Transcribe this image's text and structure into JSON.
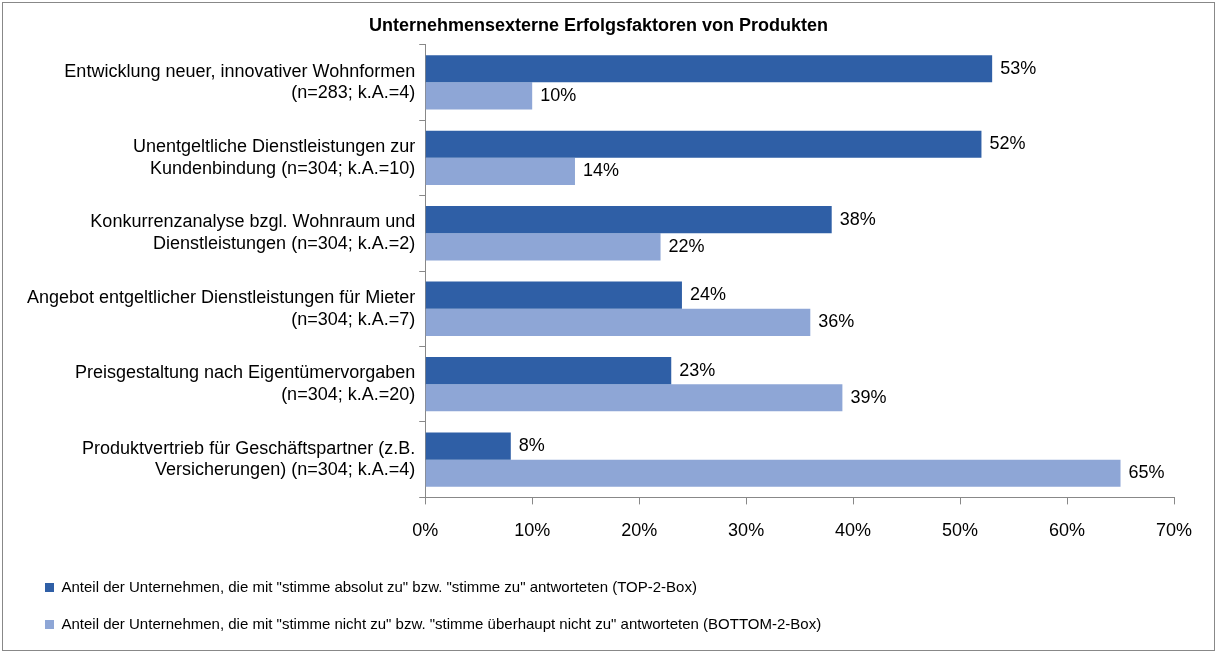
{
  "chart_data": {
    "type": "bar",
    "orientation": "horizontal",
    "title": "Unternehmensexterne Erfolgsfaktoren von Produkten",
    "categories": [
      "Entwicklung neuer, innovativer Wohnformen (n=283; k.A.=4)",
      "Unentgeltliche Dienstleistungen zur Kundenbindung (n=304; k.A.=10)",
      "Konkurrenzanalyse bzgl. Wohnraum und Dienstleistungen (n=304; k.A.=2)",
      "Angebot entgeltlicher Dienstleistungen für Mieter (n=304; k.A.=7)",
      "Preisgestaltung nach Eigentümervorgaben (n=304; k.A.=20)",
      "Produktvertrieb für Geschäftspartner (z.B. Versicherungen) (n=304; k.A.=4)"
    ],
    "series": [
      {
        "name": "Anteil der Unternehmen, die mit \"stimme absolut zu\" bzw. \"stimme zu\" antworteten (TOP-2-Box)",
        "color": "#2f5fa6",
        "values": [
          53,
          52,
          38,
          24,
          23,
          8
        ],
        "value_labels": [
          "53%",
          "52%",
          "38%",
          "24%",
          "23%",
          "8%"
        ]
      },
      {
        "name": "Anteil der Unternehmen, die mit \"stimme nicht zu\" bzw. \"stimme überhaupt nicht zu\" antworteten (BOTTOM-2-Box)",
        "color": "#8ea6d6",
        "values": [
          10,
          14,
          22,
          36,
          39,
          65
        ],
        "value_labels": [
          "10%",
          "14%",
          "22%",
          "36%",
          "39%",
          "65%"
        ]
      }
    ],
    "xlim": [
      0,
      70
    ],
    "xticks": [
      {
        "value": 0,
        "label": "0%"
      },
      {
        "value": 10,
        "label": "10%"
      },
      {
        "value": 20,
        "label": "20%"
      },
      {
        "value": 30,
        "label": "30%"
      },
      {
        "value": 40,
        "label": "40%"
      },
      {
        "value": 50,
        "label": "50%"
      },
      {
        "value": 60,
        "label": "60%"
      },
      {
        "value": 70,
        "label": "70%"
      }
    ],
    "grid": false,
    "legend": "bottom"
  }
}
